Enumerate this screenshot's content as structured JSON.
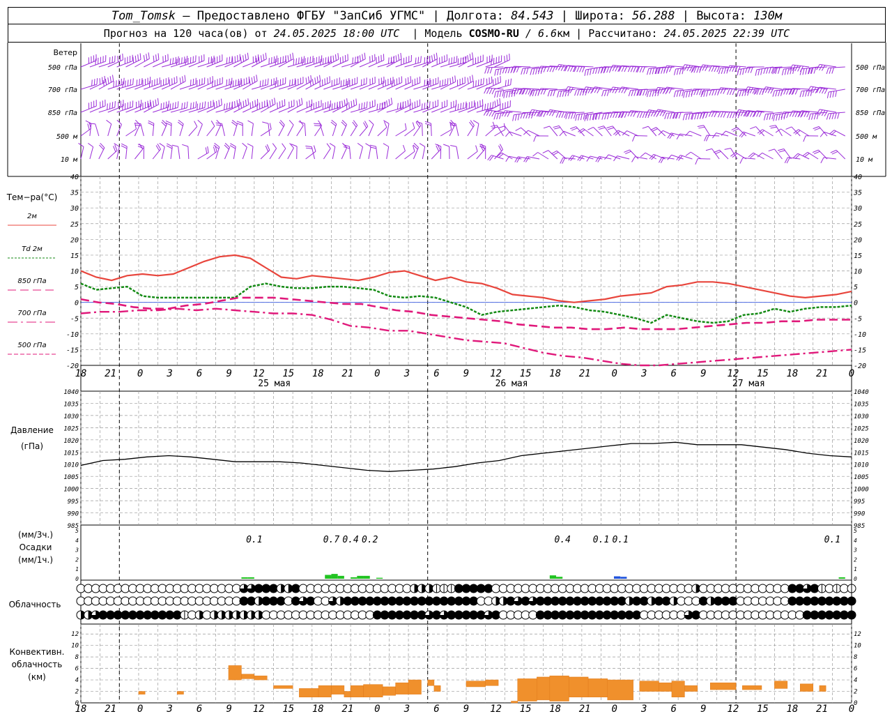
{
  "header": {
    "station": "Tom_Tomsk",
    "provider": " — Предоставлено ФГБУ \"ЗапСиб УГМС\" | Долгота: ",
    "lon": "84.543",
    "lat_label": " | Широта: ",
    "lat": "56.288",
    "alt_label": " | Высота: ",
    "alt": "130м",
    "forecast_label": "Прогноз на 120 часа(ов) от ",
    "forecast_from": "24.05.2025 18:00 UTC",
    "model_label": "  | Модель ",
    "model": "COSMO-RU",
    "model_res": " / 6.6",
    "model_unit": "км",
    "calc_label": " | Рассчитано: ",
    "calc": "24.05.2025 22:39 UTC"
  },
  "chart_data": {
    "type": "line",
    "x_tick_labels": [
      "18",
      "21",
      "0",
      "3",
      "6",
      "9",
      "12",
      "15",
      "18",
      "21",
      "0",
      "3",
      "6",
      "9",
      "12",
      "15",
      "18",
      "21",
      "0",
      "3",
      "6",
      "9",
      "12",
      "15",
      "18",
      "21",
      "0"
    ],
    "day_labels": [
      "25 мая",
      "26 мая",
      "27 мая"
    ],
    "hours": [
      0,
      3,
      6,
      9,
      12,
      15,
      18,
      21,
      24,
      27,
      30,
      33,
      36,
      39,
      42,
      45,
      48,
      51,
      54,
      57,
      60,
      63,
      66,
      69,
      72,
      75,
      78,
      81,
      84,
      87,
      90,
      93,
      96,
      99,
      102,
      105,
      108,
      111,
      114,
      117,
      120
    ],
    "wind": {
      "title": "Ветер",
      "levels": [
        "500 гПа",
        "700 гПа",
        "850 гПа",
        "500 м",
        "10  м"
      ],
      "color": "#9a2bd8"
    },
    "temperature": {
      "title": "Тем−ра(°C)",
      "ylim": [
        -20,
        40
      ],
      "yticks": [
        -20,
        -15,
        -10,
        -5,
        0,
        5,
        10,
        15,
        20,
        25,
        30,
        35,
        40
      ],
      "series": [
        {
          "name": "2м",
          "color": "#e8453c",
          "values": [
            10,
            8,
            7,
            8.5,
            9,
            8.5,
            9,
            11,
            13,
            14.5,
            15,
            14,
            11,
            8,
            7.5,
            8.5,
            8,
            7.5,
            7,
            8,
            9.5,
            10,
            8.5,
            7,
            8,
            6.5,
            6,
            4.5,
            2.5,
            2,
            1.5,
            0.5,
            0,
            0.5,
            1,
            2,
            2.5,
            3,
            5,
            5.5,
            6.5,
            6.5,
            6,
            5,
            4,
            3,
            2,
            1.5,
            2,
            2.5,
            3.5
          ]
        },
        {
          "name": "Td  2м",
          "color": "#138a13",
          "values": [
            6,
            4,
            4.5,
            5,
            2,
            1.5,
            1.5,
            1.5,
            1.5,
            1.5,
            1.5,
            5,
            6,
            5,
            4.5,
            4.5,
            5,
            5,
            4.5,
            4,
            2,
            1.5,
            2,
            1.5,
            0,
            -1.5,
            -4,
            -3,
            -2.5,
            -2,
            -1.5,
            -1,
            -1.5,
            -2.5,
            -3,
            -4,
            -5,
            -6.5,
            -4,
            -5,
            -6,
            -6.5,
            -6,
            -4,
            -3.5,
            -2,
            -3,
            -2,
            -1.5,
            -1.5,
            -1
          ]
        },
        {
          "name": "850 гПа",
          "color": "#e0187a",
          "values": [
            1,
            0,
            -0.5,
            -1.5,
            -2,
            -2,
            -1,
            -0.5,
            0.5,
            1.5,
            1.5,
            1.5,
            1,
            0.5,
            0,
            -0.5,
            -0.5,
            -1.5,
            -2.5,
            -3,
            -4,
            -4.5,
            -5,
            -5.5,
            -6,
            -7,
            -7.5,
            -8,
            -8,
            -8.5,
            -8.5,
            -8,
            -8.5,
            -8.5,
            -8.5,
            -8,
            -7.5,
            -7,
            -6.5,
            -6.5,
            -6,
            -6,
            -5.5,
            -5.5,
            -5.5
          ]
        },
        {
          "name": "700 гПа",
          "color": "#e0187a",
          "values": [
            -3.5,
            -3,
            -3,
            -2.5,
            -2.5,
            -2,
            -2.5,
            -2,
            -2.5,
            -3,
            -3.5,
            -3.5,
            -4,
            -5.5,
            -7.5,
            -8,
            -9,
            -9,
            -10,
            -11,
            -12,
            -12.5,
            -13,
            -14.5,
            -16,
            -17,
            -17.5,
            -18.5,
            -19.5,
            -20,
            -20,
            -19.5,
            -19,
            -18.5,
            -18,
            -17.5,
            -17,
            -16.5,
            -16,
            -15.5,
            -15
          ]
        },
        {
          "name": "500 гПа",
          "color": "#e0187a",
          "values": []
        }
      ]
    },
    "pressure": {
      "title": "Давление",
      "unit": "(гПа)",
      "ylim": [
        985,
        1040
      ],
      "yticks": [
        985,
        990,
        995,
        1000,
        1005,
        1010,
        1015,
        1020,
        1025,
        1030,
        1035,
        1040
      ],
      "values": [
        1009.5,
        1011.5,
        1012,
        1013,
        1013.5,
        1013,
        1012,
        1011,
        1011,
        1011,
        1010.5,
        1009.5,
        1008.5,
        1007.5,
        1007,
        1007.5,
        1008,
        1009,
        1010.5,
        1011.5,
        1013.5,
        1014.5,
        1015.5,
        1016.5,
        1017.5,
        1018.5,
        1018.5,
        1019,
        1018,
        1018,
        1018,
        1017,
        1016,
        1014.5,
        1013.5,
        1013
      ]
    },
    "precipitation": {
      "title": "Осадки",
      "unit_3h": "(мм/3ч.)",
      "unit_1h": "(мм/1ч.)",
      "ylim": [
        0,
        5
      ],
      "yticks": [
        0,
        1,
        2,
        3,
        4,
        5
      ],
      "labels": [
        {
          "hour": 27,
          "text": "0.1"
        },
        {
          "hour": 39,
          "text": "0.7"
        },
        {
          "hour": 42,
          "text": "0.4"
        },
        {
          "hour": 45,
          "text": "0.2"
        },
        {
          "hour": 75,
          "text": "0.4"
        },
        {
          "hour": 81,
          "text": "0.1"
        },
        {
          "hour": 84,
          "text": "0.1"
        },
        {
          "hour": 117,
          "text": "0.1"
        }
      ],
      "bars": [
        {
          "hour": 25.5,
          "value": 0.15,
          "color": "#22c322"
        },
        {
          "hour": 26.5,
          "value": 0.15,
          "color": "#22c322"
        },
        {
          "hour": 38.5,
          "value": 0.4,
          "color": "#22c322"
        },
        {
          "hour": 39.5,
          "value": 0.5,
          "color": "#22c322"
        },
        {
          "hour": 40.5,
          "value": 0.3,
          "color": "#22c322"
        },
        {
          "hour": 42.5,
          "value": 0.15,
          "color": "#22c322"
        },
        {
          "hour": 43.5,
          "value": 0.3,
          "color": "#22c322"
        },
        {
          "hour": 44.5,
          "value": 0.3,
          "color": "#22c322"
        },
        {
          "hour": 46.5,
          "value": 0.1,
          "color": "#22c322"
        },
        {
          "hour": 73.5,
          "value": 0.35,
          "color": "#22c322"
        },
        {
          "hour": 74.5,
          "value": 0.2,
          "color": "#22c322"
        },
        {
          "hour": 83.5,
          "value": 0.25,
          "color": "#2255dd"
        },
        {
          "hour": 84.5,
          "value": 0.2,
          "color": "#2255dd"
        },
        {
          "hour": 118.5,
          "value": 0.15,
          "color": "#22c322"
        }
      ]
    },
    "cloudiness": {
      "title": "Облачность",
      "rows": [
        "000000000000000000000033444224000000000000000222111444440000000000000000000000000002000000000000443410101000",
        "000000000000000000000044244404340032444444444444444444002243434444444444442442442000424440000000444444444444",
        "223444444444441020222222200000000000000044444443434444434000004444444444444400000034000000000000004444444224"
      ]
    },
    "convective": {
      "title_lines": [
        "Конвективн.",
        "облачность",
        "(км)"
      ],
      "ylim": [
        0,
        13
      ],
      "yticks": [
        0,
        2,
        4,
        6,
        8,
        10,
        12
      ],
      "color": "#f0902c",
      "blocks": [
        {
          "h0": 9,
          "h1": 10,
          "lo": 1.5,
          "hi": 2
        },
        {
          "h0": 15,
          "h1": 16,
          "lo": 1.5,
          "hi": 2
        },
        {
          "h0": 23,
          "h1": 25,
          "lo": 4,
          "hi": 6.5
        },
        {
          "h0": 25,
          "h1": 27,
          "lo": 4.2,
          "hi": 5
        },
        {
          "h0": 27,
          "h1": 29,
          "lo": 4,
          "hi": 4.7
        },
        {
          "h0": 30,
          "h1": 33,
          "lo": 2.5,
          "hi": 3
        },
        {
          "h0": 34,
          "h1": 37,
          "lo": 1,
          "hi": 2.5
        },
        {
          "h0": 37,
          "h1": 39,
          "lo": 1,
          "hi": 3
        },
        {
          "h0": 39,
          "h1": 41,
          "lo": 1.5,
          "hi": 3
        },
        {
          "h0": 41,
          "h1": 42,
          "lo": 1,
          "hi": 2
        },
        {
          "h0": 42,
          "h1": 44,
          "lo": 1,
          "hi": 3
        },
        {
          "h0": 44,
          "h1": 47,
          "lo": 1,
          "hi": 3.2
        },
        {
          "h0": 47,
          "h1": 49,
          "lo": 1.3,
          "hi": 2.8
        },
        {
          "h0": 49,
          "h1": 51,
          "lo": 1.5,
          "hi": 3.5
        },
        {
          "h0": 51,
          "h1": 53,
          "lo": 1.5,
          "hi": 4
        },
        {
          "h0": 54,
          "h1": 55,
          "lo": 3,
          "hi": 4
        },
        {
          "h0": 55,
          "h1": 56,
          "lo": 2,
          "hi": 3
        },
        {
          "h0": 60,
          "h1": 63,
          "lo": 2.8,
          "hi": 3.8
        },
        {
          "h0": 63,
          "h1": 65,
          "lo": 3,
          "hi": 4
        },
        {
          "h0": 67,
          "h1": 68,
          "lo": 0,
          "hi": 0.3
        },
        {
          "h0": 68,
          "h1": 71,
          "lo": 0.3,
          "hi": 4.2
        },
        {
          "h0": 71,
          "h1": 73,
          "lo": 0.5,
          "hi": 4.5
        },
        {
          "h0": 73,
          "h1": 76,
          "lo": 0.3,
          "hi": 4.7
        },
        {
          "h0": 76,
          "h1": 79,
          "lo": 1,
          "hi": 4.5
        },
        {
          "h0": 79,
          "h1": 82,
          "lo": 1,
          "hi": 4.2
        },
        {
          "h0": 82,
          "h1": 86,
          "lo": 0.5,
          "hi": 4
        },
        {
          "h0": 87,
          "h1": 90,
          "lo": 2,
          "hi": 3.8
        },
        {
          "h0": 90,
          "h1": 92,
          "lo": 2,
          "hi": 3.5
        },
        {
          "h0": 92,
          "h1": 94,
          "lo": 1,
          "hi": 3.8
        },
        {
          "h0": 94,
          "h1": 96,
          "lo": 2,
          "hi": 3
        },
        {
          "h0": 98,
          "h1": 102,
          "lo": 2.3,
          "hi": 3.5
        },
        {
          "h0": 103,
          "h1": 106,
          "lo": 2.3,
          "hi": 3
        },
        {
          "h0": 108,
          "h1": 110,
          "lo": 2.5,
          "hi": 3.8
        },
        {
          "h0": 112,
          "h1": 114,
          "lo": 2,
          "hi": 3.3
        },
        {
          "h0": 115,
          "h1": 116,
          "lo": 2,
          "hi": 3
        }
      ]
    }
  }
}
